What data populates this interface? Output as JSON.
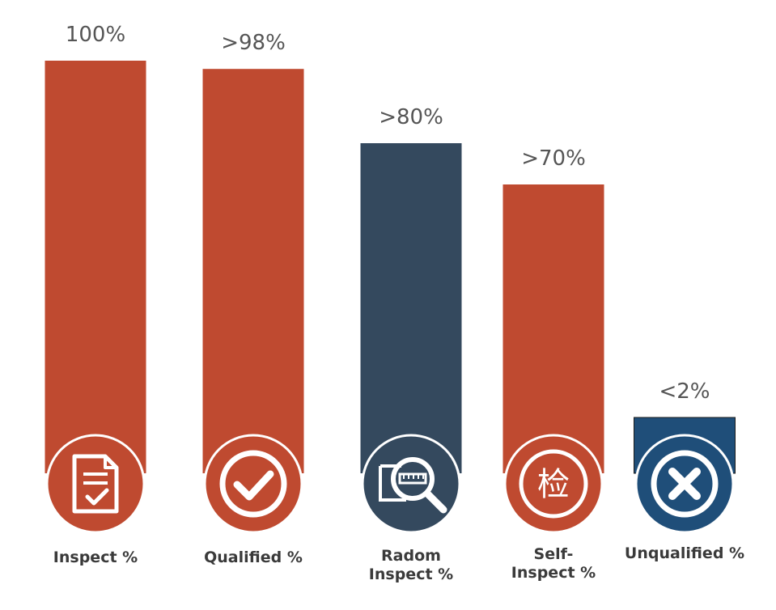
{
  "colors": {
    "red": "#BF4A30",
    "slate": "#34495E",
    "blue": "#1F4E79",
    "icon_white": "#ffffff",
    "label": "#3a3a3a"
  },
  "chart_data": {
    "type": "bar",
    "title": "",
    "xlabel": "",
    "ylabel": "",
    "ylim": [
      0,
      100
    ],
    "grid": false,
    "legend": "none",
    "categories": [
      "Inspect %",
      "Qualified %",
      "Radom\nInspect %",
      "Self-\nInspect %",
      "Unqualified %"
    ],
    "values": [
      100,
      98,
      80,
      70,
      2
    ],
    "value_labels": [
      "100%",
      ">98%",
      ">80%",
      ">70%",
      "<2%"
    ],
    "bar_colors": [
      "#BF4A30",
      "#BF4A30",
      "#34495E",
      "#BF4A30",
      "#1F4E79"
    ],
    "icons": [
      "document-check-icon",
      "checkmark-circle-icon",
      "magnifier-inspect-icon",
      "inspect-character-icon",
      "x-circle-icon"
    ],
    "icon_glyph_text": [
      "",
      "",
      "",
      "检",
      ""
    ]
  }
}
